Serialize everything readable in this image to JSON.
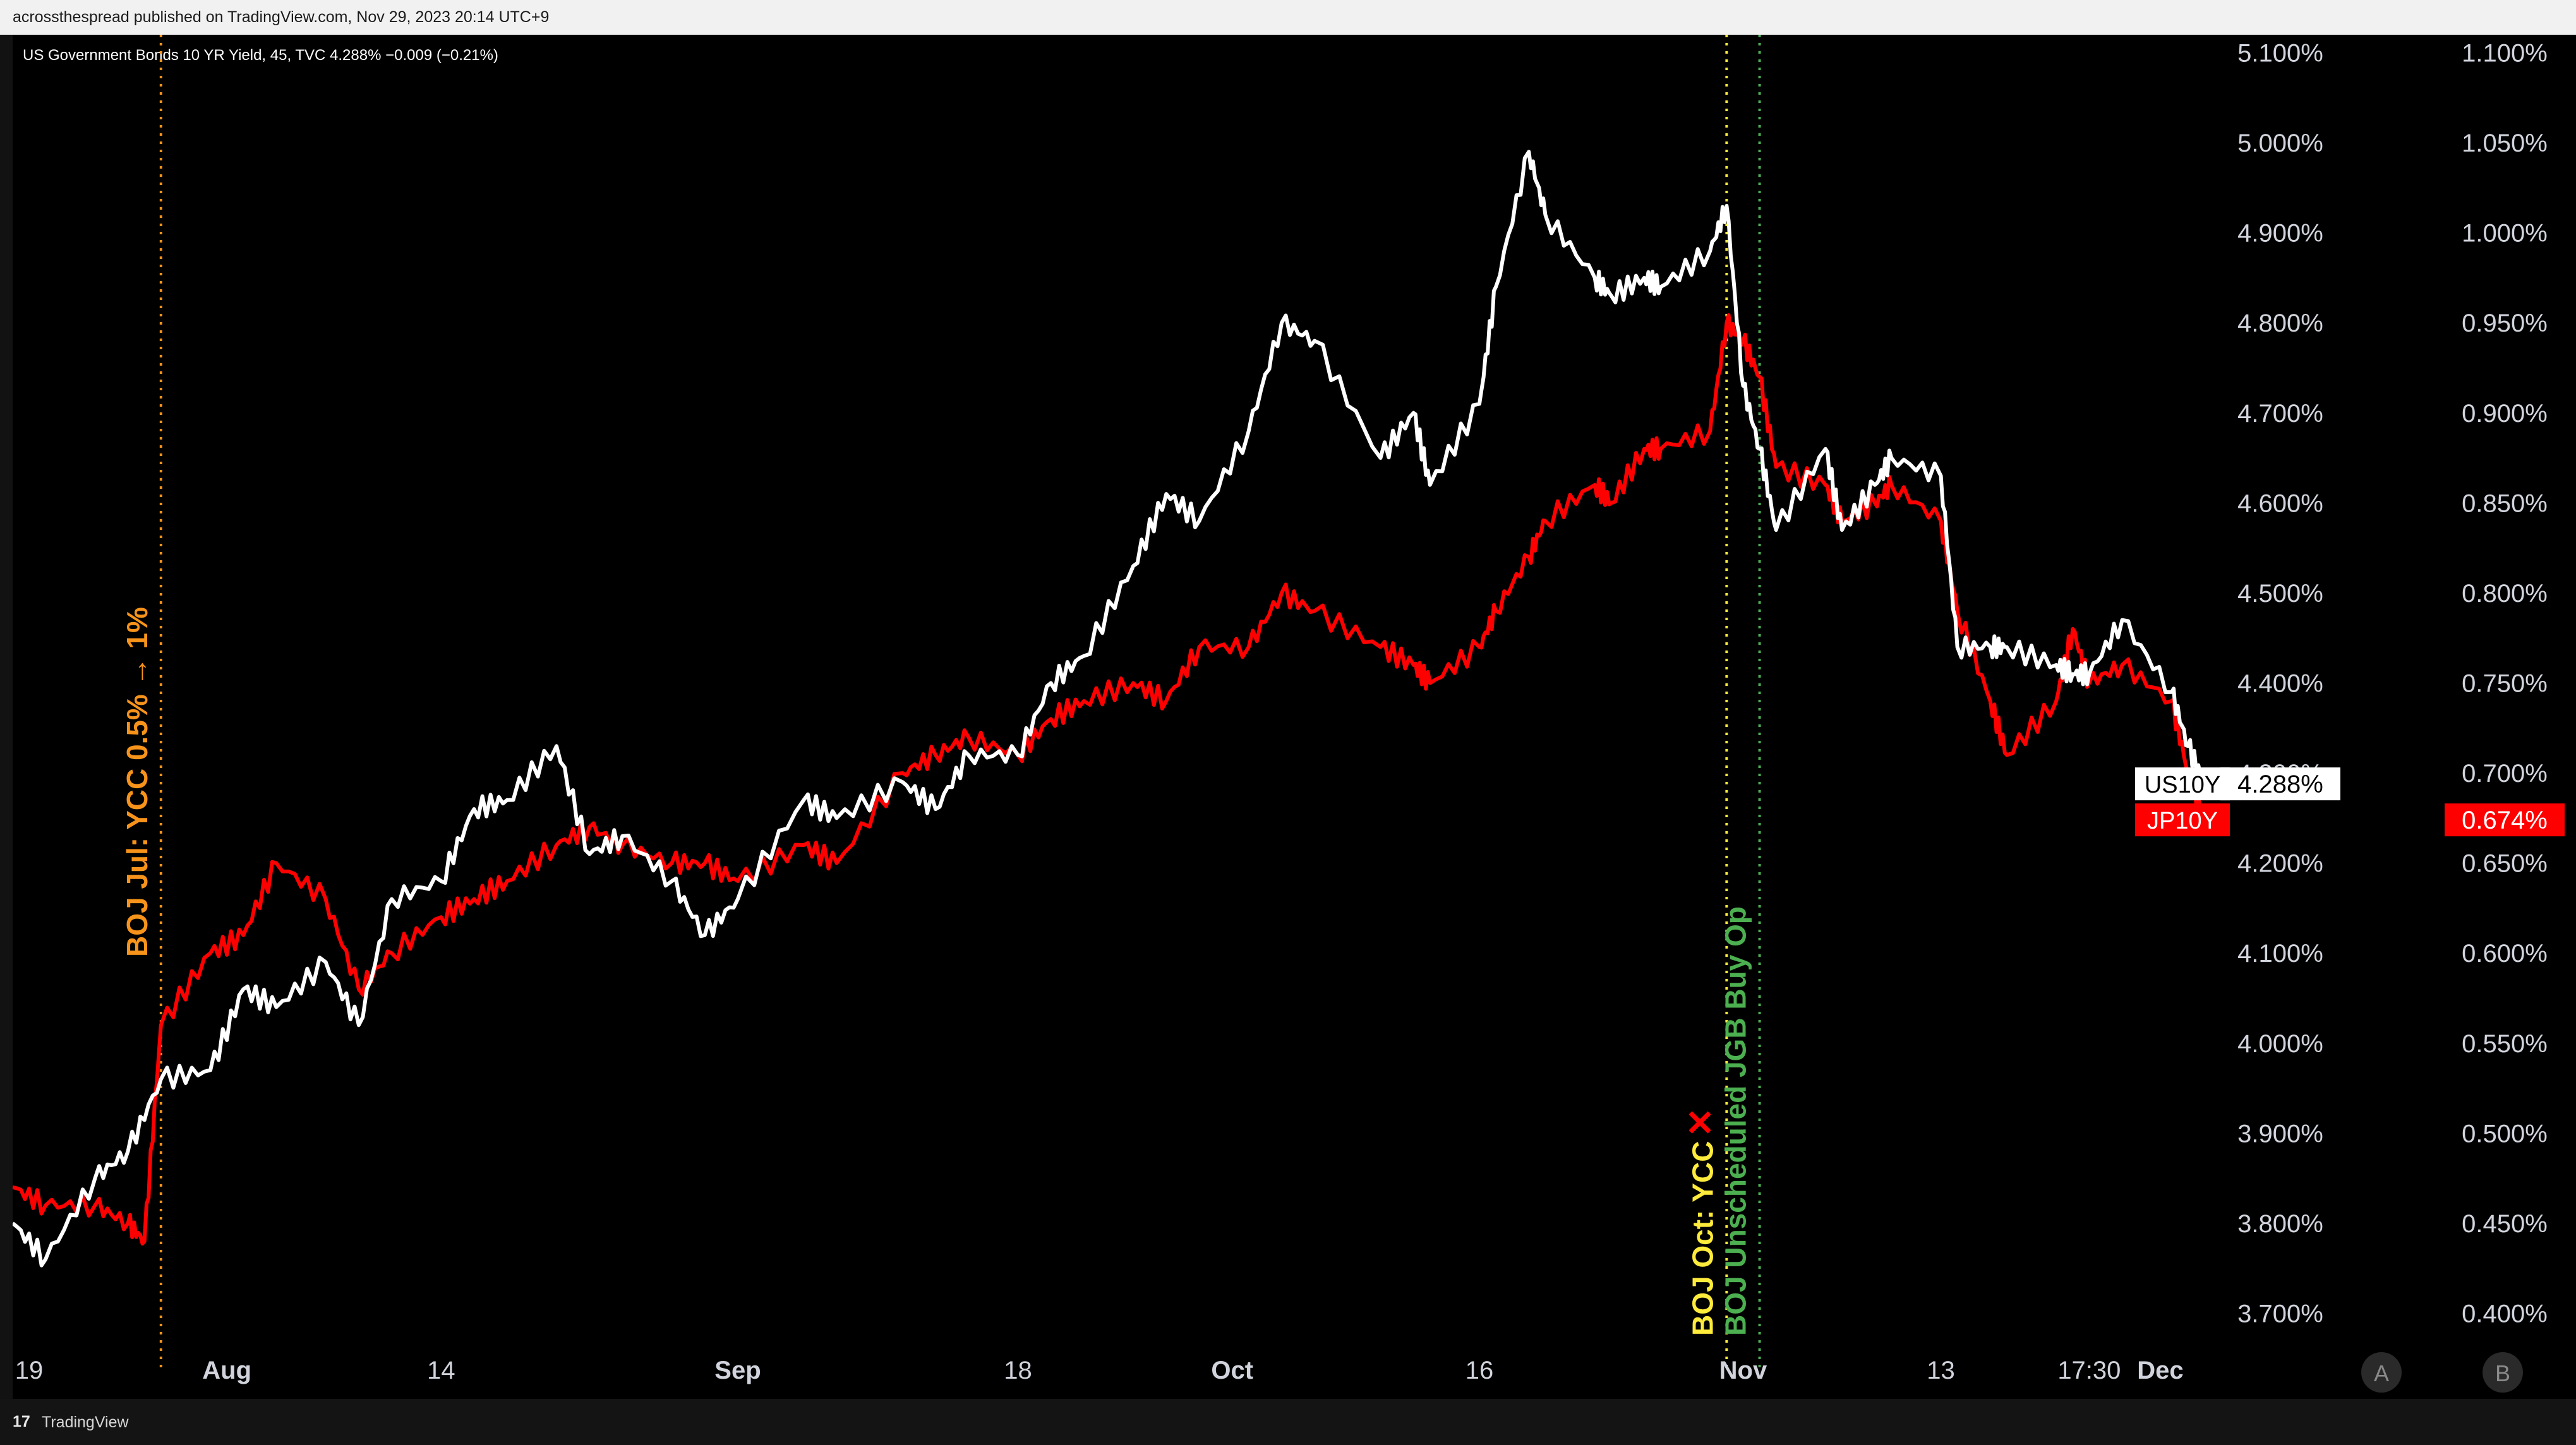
{
  "header": {
    "published_text": "acrossthespread published on TradingView.com, Nov 29, 2023 20:14 UTC+9"
  },
  "legend": {
    "text": "US Government Bonds 10 YR Yield, 45, TVC  4.288%  −0.009 (−0.21%)"
  },
  "footer": {
    "brand": "TradingView",
    "logo_glyph": "17"
  },
  "colors": {
    "background": "#000000",
    "us10y": "#ffffff",
    "jp10y": "#ff0000",
    "boj_jul": "#f7931a",
    "boj_oct": "#ffeb3b",
    "boj_buy": "#4caf50",
    "axis_text": "#d1d4dc"
  },
  "chart_data": {
    "type": "line",
    "title": "US Government Bonds 10 YR Yield, 45, TVC",
    "x_range": [
      "2023-07-19",
      "2023-11-29"
    ],
    "x_ticks": [
      "19",
      "Aug",
      "14",
      "Sep",
      "18",
      "Oct",
      "16",
      "Nov",
      "13",
      "17:30",
      "Dec"
    ],
    "bold_x_ticks": [
      "Aug",
      "Sep",
      "Oct",
      "Nov",
      "Dec"
    ],
    "scale_buttons": [
      "A",
      "B"
    ],
    "axes": {
      "us_yield": {
        "side": "right",
        "ylim": [
          3.64,
          5.12
        ],
        "ticks": [
          "3.700%",
          "3.800%",
          "3.900%",
          "4.000%",
          "4.100%",
          "4.200%",
          "4.300%",
          "4.400%",
          "4.500%",
          "4.600%",
          "4.700%",
          "4.800%",
          "4.900%",
          "5.000%",
          "5.100%"
        ]
      },
      "jp_yield": {
        "side": "right",
        "ylim": [
          0.37,
          1.11
        ],
        "ticks": [
          "0.400%",
          "0.450%",
          "0.500%",
          "0.550%",
          "0.600%",
          "0.650%",
          "0.700%",
          "0.750%",
          "0.800%",
          "0.850%",
          "0.900%",
          "0.950%",
          "1.000%",
          "1.050%",
          "1.100%"
        ]
      }
    },
    "series": [
      {
        "name": "US10Y",
        "axis": "us_yield",
        "color": "#ffffff",
        "last_label": "4.288%",
        "points": [
          [
            "2023-07-19",
            3.8
          ],
          [
            "2023-07-21",
            3.76
          ],
          [
            "2023-07-24",
            3.85
          ],
          [
            "2023-07-26",
            3.88
          ],
          [
            "2023-07-28",
            3.96
          ],
          [
            "2023-07-31",
            3.97
          ],
          [
            "2023-08-02",
            4.06
          ],
          [
            "2023-08-04",
            4.04
          ],
          [
            "2023-08-07",
            4.09
          ],
          [
            "2023-08-09",
            4.02
          ],
          [
            "2023-08-11",
            4.16
          ],
          [
            "2023-08-14",
            4.18
          ],
          [
            "2023-08-16",
            4.26
          ],
          [
            "2023-08-18",
            4.27
          ],
          [
            "2023-08-21",
            4.33
          ],
          [
            "2023-08-23",
            4.21
          ],
          [
            "2023-08-25",
            4.23
          ],
          [
            "2023-08-28",
            4.18
          ],
          [
            "2023-08-30",
            4.12
          ],
          [
            "2023-09-01",
            4.16
          ],
          [
            "2023-09-05",
            4.27
          ],
          [
            "2023-09-07",
            4.25
          ],
          [
            "2023-09-11",
            4.29
          ],
          [
            "2023-09-13",
            4.26
          ],
          [
            "2023-09-15",
            4.32
          ],
          [
            "2023-09-18",
            4.32
          ],
          [
            "2023-09-20",
            4.4
          ],
          [
            "2023-09-22",
            4.43
          ],
          [
            "2023-09-25",
            4.53
          ],
          [
            "2023-09-27",
            4.61
          ],
          [
            "2023-09-29",
            4.58
          ],
          [
            "2023-10-02",
            4.68
          ],
          [
            "2023-10-04",
            4.8
          ],
          [
            "2023-10-06",
            4.78
          ],
          [
            "2023-10-10",
            4.65
          ],
          [
            "2023-10-12",
            4.7
          ],
          [
            "2023-10-13",
            4.62
          ],
          [
            "2023-10-16",
            4.71
          ],
          [
            "2023-10-17",
            4.84
          ],
          [
            "2023-10-19",
            4.99
          ],
          [
            "2023-10-20",
            4.92
          ],
          [
            "2023-10-23",
            4.85
          ],
          [
            "2023-10-24",
            4.83
          ],
          [
            "2023-10-26",
            4.85
          ],
          [
            "2023-10-27",
            4.84
          ],
          [
            "2023-10-30",
            4.88
          ],
          [
            "2023-10-31",
            4.93
          ],
          [
            "2023-11-01",
            4.73
          ],
          [
            "2023-11-02",
            4.66
          ],
          [
            "2023-11-03",
            4.57
          ],
          [
            "2023-11-06",
            4.66
          ],
          [
            "2023-11-07",
            4.57
          ],
          [
            "2023-11-09",
            4.62
          ],
          [
            "2023-11-10",
            4.65
          ],
          [
            "2023-11-13",
            4.63
          ],
          [
            "2023-11-14",
            4.44
          ],
          [
            "2023-11-16",
            4.44
          ],
          [
            "2023-11-17",
            4.44
          ],
          [
            "2023-11-20",
            4.42
          ],
          [
            "2023-11-21",
            4.41
          ],
          [
            "2023-11-22",
            4.41
          ],
          [
            "2023-11-24",
            4.47
          ],
          [
            "2023-11-27",
            4.39
          ],
          [
            "2023-11-28",
            4.33
          ],
          [
            "2023-11-29",
            4.288
          ]
        ]
      },
      {
        "name": "JP10Y",
        "axis": "jp_yield",
        "color": "#ff0000",
        "last_label": "0.674%",
        "points": [
          [
            "2023-07-19",
            0.47
          ],
          [
            "2023-07-21",
            0.46
          ],
          [
            "2023-07-24",
            0.46
          ],
          [
            "2023-07-26",
            0.45
          ],
          [
            "2023-07-27",
            0.44
          ],
          [
            "2023-07-28",
            0.56
          ],
          [
            "2023-07-31",
            0.6
          ],
          [
            "2023-08-02",
            0.61
          ],
          [
            "2023-08-04",
            0.65
          ],
          [
            "2023-08-07",
            0.63
          ],
          [
            "2023-08-09",
            0.58
          ],
          [
            "2023-08-11",
            0.6
          ],
          [
            "2023-08-14",
            0.62
          ],
          [
            "2023-08-16",
            0.63
          ],
          [
            "2023-08-18",
            0.64
          ],
          [
            "2023-08-21",
            0.66
          ],
          [
            "2023-08-23",
            0.67
          ],
          [
            "2023-08-25",
            0.66
          ],
          [
            "2023-08-28",
            0.65
          ],
          [
            "2023-08-30",
            0.65
          ],
          [
            "2023-09-01",
            0.64
          ],
          [
            "2023-09-05",
            0.66
          ],
          [
            "2023-09-07",
            0.65
          ],
          [
            "2023-09-11",
            0.7
          ],
          [
            "2023-09-13",
            0.71
          ],
          [
            "2023-09-15",
            0.72
          ],
          [
            "2023-09-18",
            0.71
          ],
          [
            "2023-09-20",
            0.73
          ],
          [
            "2023-09-22",
            0.74
          ],
          [
            "2023-09-25",
            0.75
          ],
          [
            "2023-09-27",
            0.74
          ],
          [
            "2023-09-29",
            0.77
          ],
          [
            "2023-10-02",
            0.77
          ],
          [
            "2023-10-04",
            0.8
          ],
          [
            "2023-10-06",
            0.79
          ],
          [
            "2023-10-10",
            0.77
          ],
          [
            "2023-10-12",
            0.76
          ],
          [
            "2023-10-13",
            0.75
          ],
          [
            "2023-10-16",
            0.77
          ],
          [
            "2023-10-17",
            0.79
          ],
          [
            "2023-10-19",
            0.82
          ],
          [
            "2023-10-20",
            0.84
          ],
          [
            "2023-10-23",
            0.86
          ],
          [
            "2023-10-24",
            0.85
          ],
          [
            "2023-10-26",
            0.88
          ],
          [
            "2023-10-27",
            0.88
          ],
          [
            "2023-10-30",
            0.89
          ],
          [
            "2023-10-31",
            0.95
          ],
          [
            "2023-11-01",
            0.94
          ],
          [
            "2023-11-02",
            0.92
          ],
          [
            "2023-11-03",
            0.87
          ],
          [
            "2023-11-06",
            0.86
          ],
          [
            "2023-11-07",
            0.84
          ],
          [
            "2023-11-09",
            0.85
          ],
          [
            "2023-11-10",
            0.86
          ],
          [
            "2023-11-13",
            0.84
          ],
          [
            "2023-11-14",
            0.79
          ],
          [
            "2023-11-16",
            0.74
          ],
          [
            "2023-11-17",
            0.71
          ],
          [
            "2023-11-20",
            0.74
          ],
          [
            "2023-11-21",
            0.78
          ],
          [
            "2023-11-22",
            0.75
          ],
          [
            "2023-11-24",
            0.76
          ],
          [
            "2023-11-27",
            0.74
          ],
          [
            "2023-11-28",
            0.7
          ],
          [
            "2023-11-29",
            0.674
          ]
        ]
      }
    ],
    "annotations": [
      {
        "date": "2023-07-28",
        "text": "BOJ Jul: YCC 0.5% → 1%",
        "color": "#f7931a"
      },
      {
        "date": "2023-10-31",
        "text": "BOJ Oct: YCC",
        "suffix": "✕",
        "suffix_color": "#ff0000",
        "color": "#ffeb3b"
      },
      {
        "date": "2023-11-02",
        "text": "BOJ Unscheduled JGB Buy Op",
        "color": "#4caf50"
      }
    ]
  }
}
